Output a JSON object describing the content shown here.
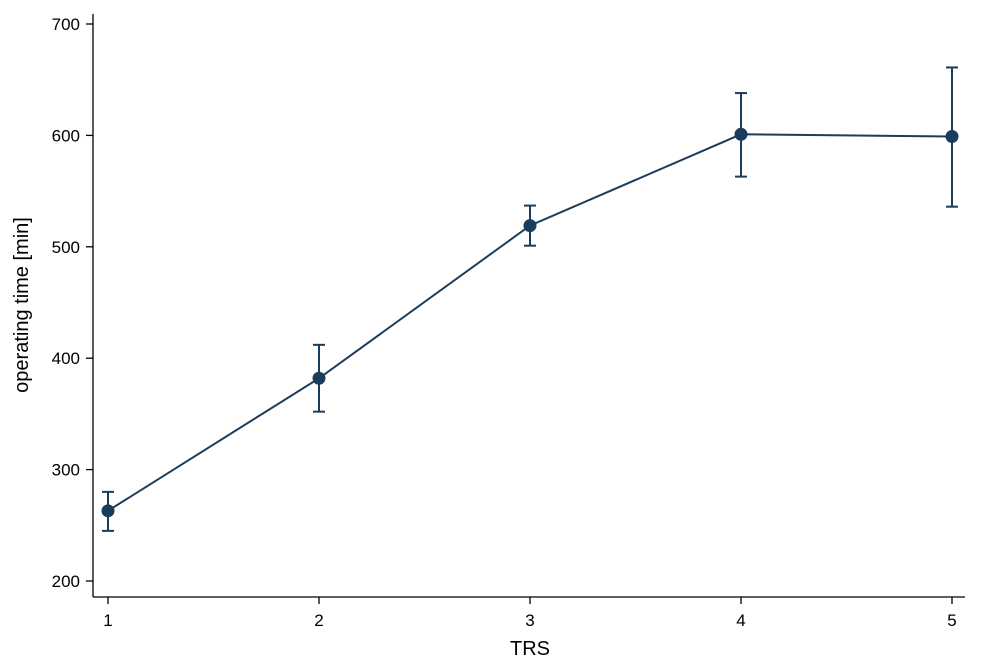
{
  "chart_data": {
    "type": "line",
    "xlabel": "TRS",
    "ylabel": "operating time [min]",
    "x": [
      1,
      2,
      3,
      4,
      5
    ],
    "x_ticks": [
      "1",
      "2",
      "3",
      "4",
      "5"
    ],
    "y_ticks": [
      "200",
      "300",
      "400",
      "500",
      "600",
      "700"
    ],
    "xlim": [
      1,
      5
    ],
    "ylim": [
      200,
      700
    ],
    "grid": false,
    "series": [
      {
        "values": [
          263,
          382,
          519,
          601,
          599
        ],
        "error_low": [
          245,
          352,
          501,
          563,
          536
        ],
        "error_high": [
          280,
          412,
          537,
          638,
          661
        ],
        "color": "#1b3d5c"
      }
    ]
  }
}
